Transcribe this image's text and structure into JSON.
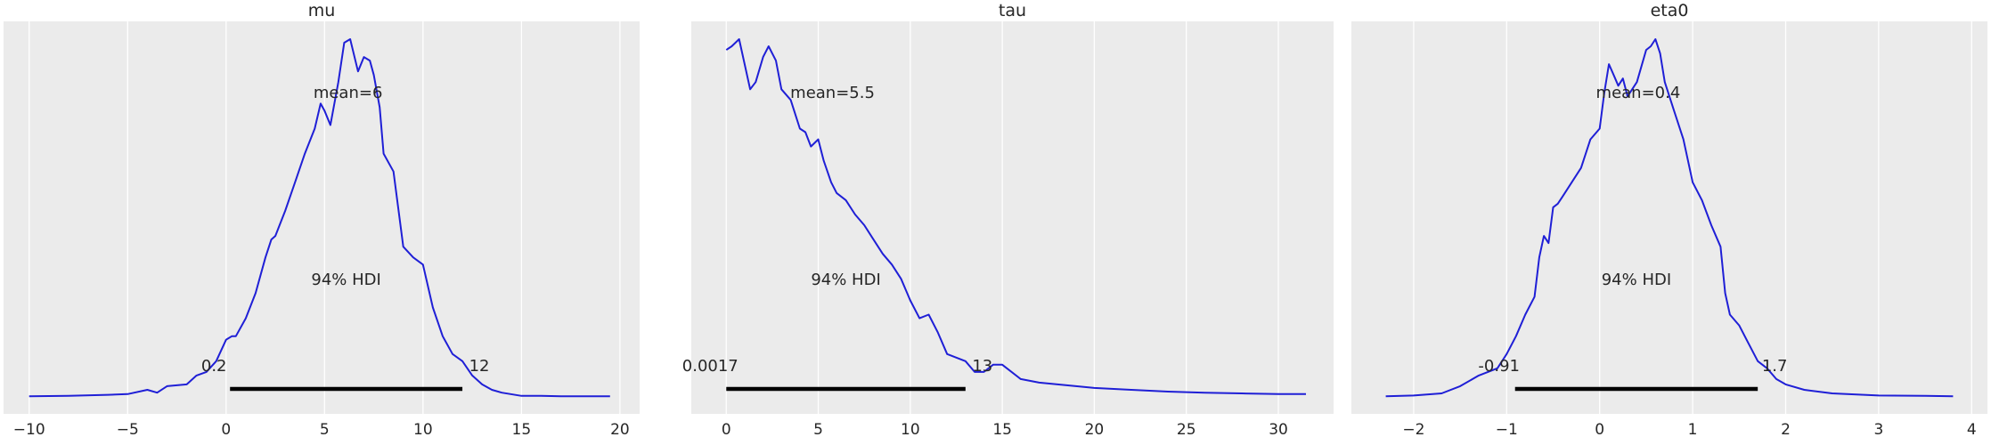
{
  "chart_data": [
    {
      "type": "line",
      "title": "mu",
      "xlim": [
        -11.3,
        21.0
      ],
      "xticks": [
        -10,
        -5,
        0,
        5,
        10,
        15,
        20
      ],
      "xtick_labels": [
        "−10",
        "−5",
        "0",
        "5",
        "10",
        "15",
        "20"
      ],
      "curve_color": "#1f1fd6",
      "density": {
        "x": [
          -10.0,
          -8.0,
          -6.0,
          -5.0,
          -4.0,
          -3.5,
          -3.0,
          -2.0,
          -1.5,
          -1.0,
          -0.5,
          0.0,
          0.3,
          0.5,
          1.0,
          1.5,
          2.0,
          2.3,
          2.5,
          3.0,
          3.5,
          4.0,
          4.5,
          4.8,
          5.0,
          5.3,
          5.7,
          6.0,
          6.3,
          6.7,
          7.0,
          7.3,
          7.5,
          7.8,
          8.0,
          8.5,
          9.0,
          9.5,
          10.0,
          10.5,
          11.0,
          11.5,
          12.0,
          12.5,
          13.0,
          13.5,
          14.0,
          15.0,
          16.0,
          17.0,
          18.0,
          19.5
        ],
        "y": [
          0.002,
          0.003,
          0.006,
          0.008,
          0.02,
          0.012,
          0.03,
          0.035,
          0.06,
          0.07,
          0.1,
          0.16,
          0.17,
          0.17,
          0.22,
          0.29,
          0.39,
          0.44,
          0.45,
          0.52,
          0.6,
          0.68,
          0.75,
          0.82,
          0.8,
          0.76,
          0.88,
          0.99,
          1.0,
          0.91,
          0.95,
          0.94,
          0.9,
          0.81,
          0.68,
          0.63,
          0.42,
          0.39,
          0.37,
          0.25,
          0.17,
          0.12,
          0.1,
          0.06,
          0.035,
          0.02,
          0.012,
          0.003,
          0.003,
          0.002,
          0.002,
          0.002
        ]
      },
      "mean_label": "mean=6",
      "hdi_label": "94% HDI",
      "hdi": [
        0.2,
        12
      ],
      "hdi_low_label": "0.2",
      "hdi_high_label": "12"
    },
    {
      "type": "line",
      "title": "tau",
      "xlim": [
        -1.9,
        33.0
      ],
      "xticks": [
        0,
        5,
        10,
        15,
        20,
        25,
        30
      ],
      "xtick_labels": [
        "0",
        "5",
        "10",
        "15",
        "20",
        "25",
        "30"
      ],
      "curve_color": "#1f1fd6",
      "density": {
        "x": [
          0.0,
          0.3,
          0.7,
          1.0,
          1.3,
          1.6,
          2.0,
          2.3,
          2.7,
          3.0,
          3.5,
          4.0,
          4.3,
          4.6,
          5.0,
          5.3,
          5.7,
          6.0,
          6.5,
          7.0,
          7.5,
          8.0,
          8.5,
          9.0,
          9.5,
          10.0,
          10.5,
          11.0,
          11.5,
          12.0,
          12.5,
          13.0,
          13.5,
          14.0,
          14.5,
          15.0,
          16.0,
          17.0,
          18.0,
          19.0,
          20.0,
          22.0,
          24.0,
          26.0,
          28.0,
          30.0,
          31.5
        ],
        "y": [
          0.97,
          0.98,
          1.0,
          0.93,
          0.86,
          0.88,
          0.95,
          0.98,
          0.94,
          0.86,
          0.83,
          0.75,
          0.74,
          0.7,
          0.72,
          0.66,
          0.6,
          0.57,
          0.55,
          0.51,
          0.48,
          0.44,
          0.4,
          0.37,
          0.33,
          0.27,
          0.22,
          0.23,
          0.18,
          0.12,
          0.11,
          0.1,
          0.07,
          0.07,
          0.09,
          0.09,
          0.05,
          0.04,
          0.035,
          0.03,
          0.025,
          0.02,
          0.015,
          0.012,
          0.01,
          0.008,
          0.008
        ]
      },
      "mean_label": "mean=5.5",
      "hdi_label": "94% HDI",
      "hdi": [
        0.0017,
        13
      ],
      "hdi_low_label": "0.0017",
      "hdi_high_label": "13"
    },
    {
      "type": "line",
      "title": "eta0",
      "xlim": [
        -2.67,
        4.17
      ],
      "xticks": [
        -2,
        -1,
        0,
        1,
        2,
        3,
        4
      ],
      "xtick_labels": [
        "−2",
        "−1",
        "0",
        "1",
        "2",
        "3",
        "4"
      ],
      "curve_color": "#1f1fd6",
      "density": {
        "x": [
          -2.3,
          -2.0,
          -1.7,
          -1.5,
          -1.3,
          -1.1,
          -1.0,
          -0.9,
          -0.8,
          -0.7,
          -0.65,
          -0.6,
          -0.55,
          -0.5,
          -0.45,
          -0.4,
          -0.3,
          -0.2,
          -0.1,
          0.0,
          0.05,
          0.1,
          0.15,
          0.2,
          0.25,
          0.3,
          0.4,
          0.5,
          0.55,
          0.6,
          0.65,
          0.7,
          0.8,
          0.9,
          1.0,
          1.1,
          1.2,
          1.3,
          1.35,
          1.4,
          1.5,
          1.6,
          1.7,
          1.8,
          1.9,
          2.0,
          2.2,
          2.5,
          3.0,
          3.5,
          3.8
        ],
        "y": [
          0.002,
          0.004,
          0.01,
          0.03,
          0.06,
          0.08,
          0.12,
          0.17,
          0.23,
          0.28,
          0.39,
          0.45,
          0.43,
          0.53,
          0.54,
          0.56,
          0.6,
          0.64,
          0.72,
          0.75,
          0.85,
          0.93,
          0.9,
          0.87,
          0.89,
          0.84,
          0.88,
          0.97,
          0.98,
          1.0,
          0.96,
          0.88,
          0.8,
          0.72,
          0.6,
          0.55,
          0.48,
          0.42,
          0.29,
          0.23,
          0.2,
          0.15,
          0.1,
          0.08,
          0.05,
          0.035,
          0.02,
          0.01,
          0.004,
          0.003,
          0.002
        ]
      },
      "mean_label": "mean=0.4",
      "hdi_label": "94% HDI",
      "hdi": [
        -0.91,
        1.7
      ],
      "hdi_low_label": "-0.91",
      "hdi_high_label": "1.7"
    }
  ]
}
